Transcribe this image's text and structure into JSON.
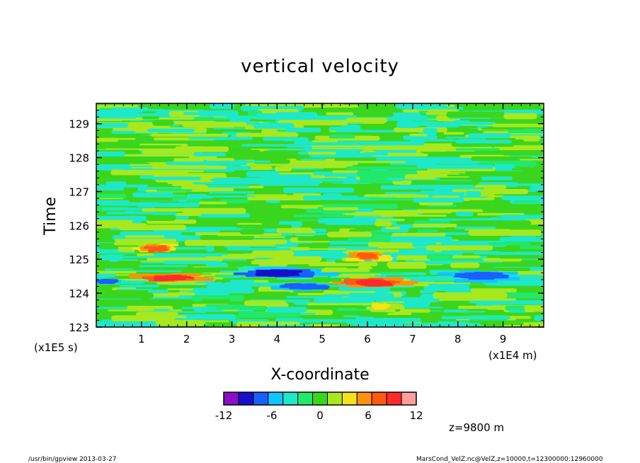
{
  "chart_data": {
    "type": "heatmap",
    "title": "vertical velocity",
    "xlabel": "X-coordinate",
    "ylabel": "Time",
    "x_unit_label": "(x1E4 m)",
    "y_unit_label": "(x1E5 s)",
    "xlim": [
      0,
      9.9
    ],
    "ylim": [
      123,
      129.6
    ],
    "x_ticks": [
      1,
      2,
      3,
      4,
      5,
      6,
      7,
      8,
      9
    ],
    "y_ticks": [
      123,
      124,
      125,
      126,
      127,
      128,
      129
    ],
    "annotation": "z=9800  m",
    "colorbar": {
      "levels": [
        -12,
        -10,
        -8,
        -6,
        -4,
        -2,
        0,
        2,
        4,
        6,
        8,
        10,
        12
      ],
      "tick_labels": [
        "-12",
        "-6",
        "0",
        "6",
        "12"
      ],
      "tick_values": [
        -12,
        -6,
        0,
        6,
        12
      ],
      "colors": [
        "#8b0dc6",
        "#1a0fc9",
        "#1a5fff",
        "#12c4ff",
        "#1ee8c8",
        "#22e86c",
        "#3ad61e",
        "#a8e81e",
        "#f5e21a",
        "#ff9010",
        "#ff5a14",
        "#ff2a2a",
        "#ff9e9e"
      ]
    },
    "features": [
      {
        "type": "positive",
        "x": 1.7,
        "y": 124.45,
        "w": 1.6,
        "h": 0.25,
        "value": 10
      },
      {
        "type": "positive",
        "x": 1.3,
        "y": 125.3,
        "w": 1.0,
        "h": 0.35,
        "value": 8
      },
      {
        "type": "positive",
        "x": 6.1,
        "y": 124.3,
        "w": 1.6,
        "h": 0.3,
        "value": 10
      },
      {
        "type": "positive",
        "x": 6.0,
        "y": 125.1,
        "w": 0.9,
        "h": 0.3,
        "value": 8
      },
      {
        "type": "positive",
        "x": 6.3,
        "y": 123.6,
        "w": 0.8,
        "h": 0.35,
        "value": 4
      },
      {
        "type": "negative",
        "x": 4.0,
        "y": 124.6,
        "w": 2.0,
        "h": 0.35,
        "value": -9
      },
      {
        "type": "negative",
        "x": 4.6,
        "y": 124.2,
        "w": 1.2,
        "h": 0.2,
        "value": -8
      },
      {
        "type": "negative",
        "x": 8.4,
        "y": 124.5,
        "w": 1.6,
        "h": 0.35,
        "value": -8
      },
      {
        "type": "negative",
        "x": 0.2,
        "y": 124.35,
        "w": 0.6,
        "h": 0.12,
        "value": -8
      }
    ]
  },
  "footer": {
    "left": "/usr/bin/gpview   2013-03-27",
    "right": "MarsCond_VelZ.nc@VelZ,z=10000,t=12300000:12960000"
  }
}
